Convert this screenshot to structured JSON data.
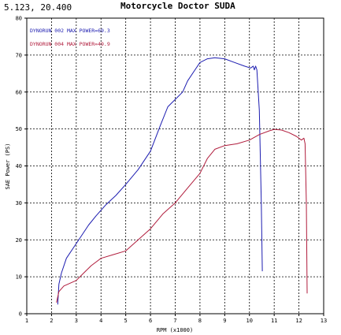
{
  "header": {
    "coordinate_readout": "5.123, 20.400",
    "title": "Motorcycle Doctor SUDA"
  },
  "chart_data": {
    "type": "line",
    "xlabel": "RPM (x1000)",
    "ylabel": "SAE Power (PS)",
    "xlim": [
      1,
      13
    ],
    "ylim": [
      0,
      80
    ],
    "x_ticks": [
      "1",
      "2",
      "3",
      "4",
      "5",
      "6",
      "7",
      "8",
      "9",
      "10",
      "11",
      "12",
      "13"
    ],
    "y_ticks": [
      "0",
      "10",
      "20",
      "30",
      "40",
      "50",
      "60",
      "70",
      "80"
    ],
    "grid": true,
    "legend_position": "top-left",
    "series": [
      {
        "name": "DYNORUN 002  MAX POWER=69.3",
        "color": "#1c1cb0",
        "x": [
          2.25,
          2.3,
          2.4,
          2.6,
          2.9,
          3.2,
          3.5,
          3.8,
          4.2,
          4.6,
          5.0,
          5.5,
          6.0,
          6.4,
          6.7,
          7.0,
          7.3,
          7.5,
          7.8,
          8.0,
          8.3,
          8.6,
          9.0,
          9.4,
          9.8,
          10.05,
          10.15,
          10.2,
          10.25,
          10.3,
          10.4,
          10.48,
          10.52
        ],
        "y": [
          2.5,
          8,
          11,
          15,
          18,
          21,
          24,
          26.5,
          29.5,
          32,
          35,
          39,
          44,
          51,
          56,
          58,
          60,
          63,
          66,
          68,
          69,
          69.3,
          69,
          68,
          67,
          66.5,
          67,
          66,
          67,
          66,
          55,
          30,
          11.5
        ]
      },
      {
        "name": "DYNORUN 004  MAX POWER=49.9",
        "color": "#b01c3c",
        "x": [
          2.2,
          2.3,
          2.5,
          3.0,
          3.3,
          3.6,
          4.0,
          4.5,
          5.0,
          5.5,
          6.0,
          6.5,
          7.0,
          7.5,
          8.0,
          8.3,
          8.6,
          9.0,
          9.5,
          10.0,
          10.4,
          10.8,
          11.0,
          11.3,
          11.6,
          11.9,
          12.1,
          12.2,
          12.25,
          12.3,
          12.33
        ],
        "y": [
          3,
          6,
          7.5,
          9,
          11,
          13,
          15,
          16,
          17,
          20,
          23,
          27,
          30,
          34,
          38,
          42,
          44.5,
          45.5,
          46,
          47,
          48.5,
          49.5,
          49.9,
          49.7,
          49,
          48,
          47,
          47.5,
          46,
          30,
          5.5
        ]
      }
    ]
  }
}
